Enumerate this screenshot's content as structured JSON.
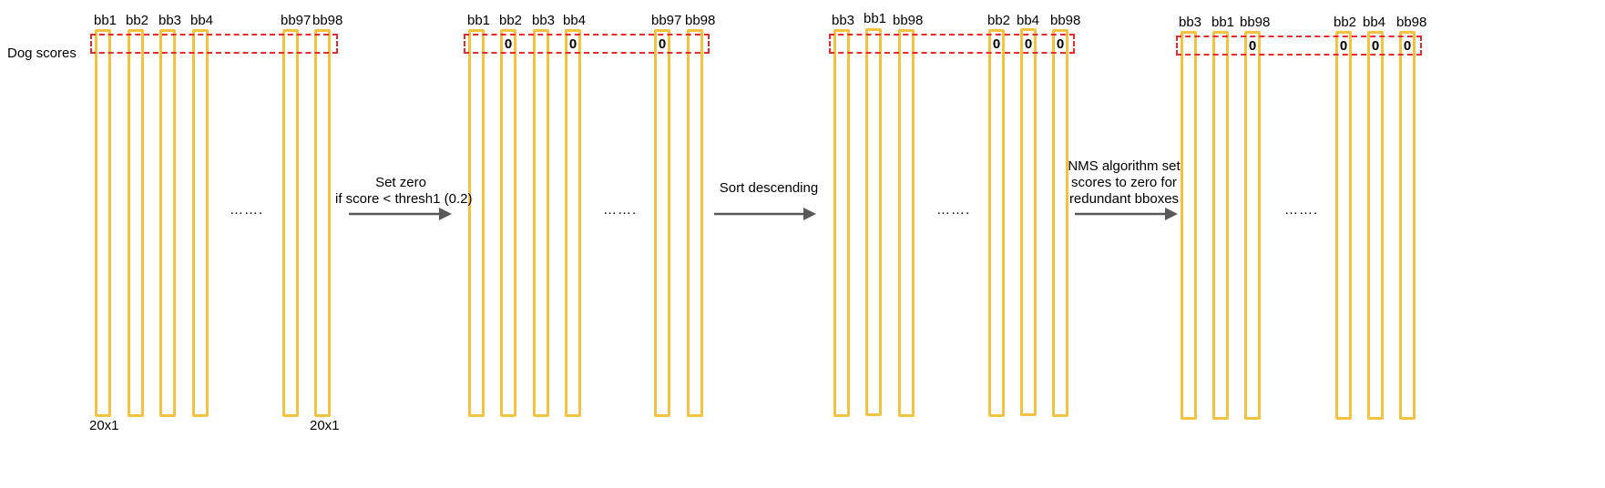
{
  "row_label": "Dog scores",
  "dots": "…….",
  "dims": {
    "left": "20x1",
    "right": "20x1"
  },
  "colors": {
    "column": "#f3c23e",
    "highlight": "#e82a2a",
    "arrow": "#595959"
  },
  "stage1": {
    "labels": [
      "bb1",
      "bb2",
      "bb3",
      "bb4",
      "bb97",
      "bb98"
    ],
    "zeros": [
      "",
      "",
      "",
      "",
      "",
      ""
    ]
  },
  "stage2": {
    "labels": [
      "bb1",
      "bb2",
      "bb3",
      "bb4",
      "bb97",
      "bb98"
    ],
    "zeros": [
      "",
      "0",
      "",
      "0",
      "0",
      ""
    ]
  },
  "stage3": {
    "labels": [
      "bb3",
      "bb1",
      "bb98",
      "bb2",
      "bb4",
      "bb98"
    ],
    "zeros": [
      "",
      "",
      "",
      "0",
      "0",
      "0"
    ]
  },
  "stage4": {
    "labels": [
      "bb3",
      "bb1",
      "bb98",
      "bb2",
      "bb4",
      "bb98"
    ],
    "zeros": [
      "",
      "",
      "0",
      "0",
      "0",
      "0"
    ]
  },
  "steps": {
    "step1": [
      "Set zero",
      "if score < thresh1 (0.2)"
    ],
    "step2": [
      "Sort descending"
    ],
    "step3": [
      "NMS algorithm set",
      "scores to zero for",
      "redundant bboxes"
    ]
  }
}
